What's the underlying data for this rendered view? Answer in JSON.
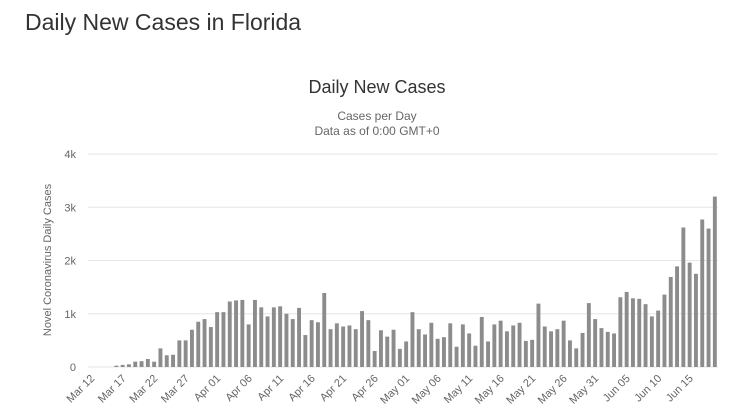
{
  "page": {
    "title": "Daily New Cases in Florida"
  },
  "colors": {
    "bar": "#8c8c8c",
    "grid": "#e6e6e6",
    "axis_text": "#666666",
    "title_text": "#333333"
  },
  "chart_data": {
    "type": "bar",
    "title": "Daily New Cases",
    "subtitle_lines": [
      "Cases per Day",
      "Data as of 0:00 GMT+0"
    ],
    "ylabel": "Novel Coronavirus Daily Cases",
    "xlabel": "",
    "ylim": [
      0,
      4000
    ],
    "y_ticks": [
      0,
      1000,
      2000,
      3000,
      4000
    ],
    "y_tick_labels": [
      "0",
      "1k",
      "2k",
      "3k",
      "4k"
    ],
    "grid": true,
    "legend": "none",
    "start_date": "Mar 12",
    "x_tick_labels": [
      "Mar 12",
      "Mar 17",
      "Mar 22",
      "Mar 27",
      "Apr 01",
      "Apr 06",
      "Apr 11",
      "Apr 16",
      "Apr 21",
      "Apr 26",
      "May 01",
      "May 06",
      "May 11",
      "May 16",
      "May 21",
      "May 26",
      "May 31",
      "Jun 05",
      "Jun 10",
      "Jun 15"
    ],
    "categories": [
      "Mar 12",
      "Mar 13",
      "Mar 14",
      "Mar 15",
      "Mar 16",
      "Mar 17",
      "Mar 18",
      "Mar 19",
      "Mar 20",
      "Mar 21",
      "Mar 22",
      "Mar 23",
      "Mar 24",
      "Mar 25",
      "Mar 26",
      "Mar 27",
      "Mar 28",
      "Mar 29",
      "Mar 30",
      "Mar 31",
      "Apr 01",
      "Apr 02",
      "Apr 03",
      "Apr 04",
      "Apr 05",
      "Apr 06",
      "Apr 07",
      "Apr 08",
      "Apr 09",
      "Apr 10",
      "Apr 11",
      "Apr 12",
      "Apr 13",
      "Apr 14",
      "Apr 15",
      "Apr 16",
      "Apr 17",
      "Apr 18",
      "Apr 19",
      "Apr 20",
      "Apr 21",
      "Apr 22",
      "Apr 23",
      "Apr 24",
      "Apr 25",
      "Apr 26",
      "Apr 27",
      "Apr 28",
      "Apr 29",
      "Apr 30",
      "May 01",
      "May 02",
      "May 03",
      "May 04",
      "May 05",
      "May 06",
      "May 07",
      "May 08",
      "May 09",
      "May 10",
      "May 11",
      "May 12",
      "May 13",
      "May 14",
      "May 15",
      "May 16",
      "May 17",
      "May 18",
      "May 19",
      "May 20",
      "May 21",
      "May 22",
      "May 23",
      "May 24",
      "May 25",
      "May 26",
      "May 27",
      "May 28",
      "May 29",
      "May 30",
      "May 31",
      "Jun 01",
      "Jun 02",
      "Jun 03",
      "Jun 04",
      "Jun 05",
      "Jun 06",
      "Jun 07",
      "Jun 08",
      "Jun 09",
      "Jun 10",
      "Jun 11",
      "Jun 12",
      "Jun 13",
      "Jun 14",
      "Jun 15",
      "Jun 16",
      "Jun 17",
      "Jun 18",
      "Jun 19"
    ],
    "values": [
      0,
      0,
      0,
      0,
      25,
      40,
      50,
      100,
      110,
      150,
      100,
      350,
      220,
      230,
      500,
      500,
      700,
      850,
      900,
      750,
      1030,
      1030,
      1230,
      1250,
      1260,
      800,
      1260,
      1120,
      950,
      1120,
      1140,
      1000,
      900,
      1110,
      600,
      880,
      840,
      1390,
      710,
      820,
      760,
      780,
      710,
      1050,
      880,
      300,
      690,
      570,
      700,
      340,
      480,
      1030,
      710,
      610,
      830,
      530,
      560,
      820,
      380,
      800,
      630,
      400,
      940,
      480,
      800,
      870,
      670,
      780,
      830,
      490,
      510,
      1190,
      760,
      670,
      710,
      870,
      500,
      350,
      640,
      1200,
      900,
      730,
      660,
      630,
      1310,
      1410,
      1290,
      1280,
      1180,
      950,
      1060,
      1360,
      1690,
      1890,
      2620,
      1960,
      1750,
      2770,
      2600,
      3200
    ]
  }
}
